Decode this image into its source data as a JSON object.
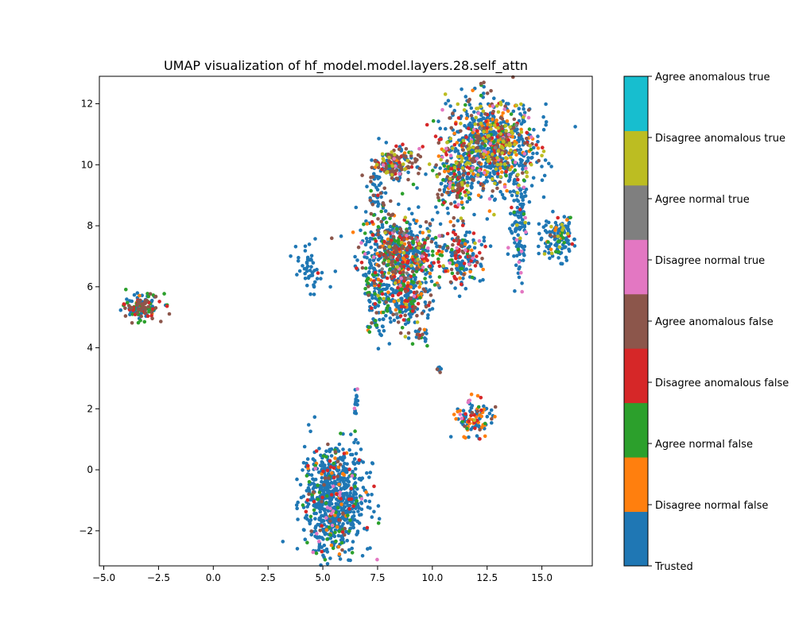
{
  "chart_data": {
    "type": "scatter",
    "title": "UMAP visualization of hf_model.model.layers.28.self_attn",
    "xlabel": "",
    "ylabel": "",
    "xlim": [
      -5.2,
      17.3
    ],
    "ylim": [
      -3.15,
      12.9
    ],
    "xticks": [
      -5.0,
      -2.5,
      0.0,
      2.5,
      5.0,
      7.5,
      10.0,
      12.5,
      15.0
    ],
    "xtick_labels": [
      "−5.0",
      "−2.5",
      "0.0",
      "2.5",
      "5.0",
      "7.5",
      "10.0",
      "12.5",
      "15.0"
    ],
    "yticks": [
      -2,
      0,
      2,
      4,
      6,
      8,
      10,
      12
    ],
    "ytick_labels": [
      "−2",
      "0",
      "2",
      "4",
      "6",
      "8",
      "10",
      "12"
    ],
    "grid": false,
    "legend": "colorbar-right",
    "colorbar": {
      "categories": [
        {
          "label": "Trusted",
          "color": "#1f77b4"
        },
        {
          "label": "Disagree normal false",
          "color": "#ff7f0e"
        },
        {
          "label": "Agree normal false",
          "color": "#2ca02c"
        },
        {
          "label": "Disagree anomalous false",
          "color": "#d62728"
        },
        {
          "label": "Agree anomalous false",
          "color": "#8c564b"
        },
        {
          "label": "Disagree normal true",
          "color": "#e377c2"
        },
        {
          "label": "Agree normal true",
          "color": "#7f7f7f"
        },
        {
          "label": "Disagree anomalous true",
          "color": "#bcbd22"
        },
        {
          "label": "Agree anomalous true",
          "color": "#17becf"
        }
      ]
    },
    "clusters": [
      {
        "name": "far-left",
        "cx": -3.3,
        "cy": 5.35,
        "sx": 0.45,
        "sy": 0.22,
        "n": 140,
        "mix": [
          0.35,
          0.02,
          0.18,
          0.15,
          0.3,
          0.0,
          0.0,
          0.0,
          0.0
        ]
      },
      {
        "name": "left-mid",
        "cx": 4.4,
        "cy": 6.6,
        "sx": 0.25,
        "sy": 0.35,
        "n": 45,
        "mix": [
          1,
          0,
          0,
          0,
          0,
          0,
          0,
          0,
          0
        ]
      },
      {
        "name": "center-main",
        "cx": 8.4,
        "cy": 7.0,
        "sx": 0.9,
        "sy": 0.65,
        "n": 700,
        "mix": [
          0.55,
          0.08,
          0.12,
          0.1,
          0.1,
          0.02,
          0.01,
          0.02,
          0.0
        ]
      },
      {
        "name": "center-lower",
        "cx": 8.8,
        "cy": 5.6,
        "sx": 0.6,
        "sy": 0.5,
        "n": 200,
        "mix": [
          0.55,
          0.08,
          0.12,
          0.12,
          0.1,
          0.01,
          0.0,
          0.02,
          0.0
        ]
      },
      {
        "name": "center-left-tail",
        "cx": 7.4,
        "cy": 5.3,
        "sx": 0.25,
        "sy": 0.5,
        "n": 60,
        "mix": [
          0.7,
          0.05,
          0.2,
          0.0,
          0.05,
          0,
          0,
          0,
          0
        ]
      },
      {
        "name": "upper-mid",
        "cx": 8.3,
        "cy": 10.0,
        "sx": 0.5,
        "sy": 0.3,
        "n": 160,
        "mix": [
          0.35,
          0.05,
          0.05,
          0.08,
          0.35,
          0.02,
          0.0,
          0.1,
          0.0
        ]
      },
      {
        "name": "upper-mid-stem",
        "cx": 7.6,
        "cy": 9.0,
        "sx": 0.25,
        "sy": 0.6,
        "n": 60,
        "mix": [
          0.5,
          0.0,
          0.1,
          0.1,
          0.3,
          0,
          0,
          0,
          0
        ]
      },
      {
        "name": "upper-right",
        "cx": 12.7,
        "cy": 10.6,
        "sx": 1.0,
        "sy": 0.8,
        "n": 900,
        "mix": [
          0.55,
          0.07,
          0.06,
          0.07,
          0.1,
          0.02,
          0.01,
          0.12,
          0.0
        ]
      },
      {
        "name": "upper-right-left",
        "cx": 11.0,
        "cy": 9.5,
        "sx": 0.5,
        "sy": 0.5,
        "n": 150,
        "mix": [
          0.45,
          0.08,
          0.08,
          0.12,
          0.15,
          0.02,
          0.0,
          0.1,
          0.0
        ]
      },
      {
        "name": "right-mid",
        "cx": 11.3,
        "cy": 7.0,
        "sx": 0.45,
        "sy": 0.45,
        "n": 180,
        "mix": [
          0.55,
          0.05,
          0.1,
          0.12,
          0.15,
          0.02,
          0.0,
          0.01,
          0.0
        ]
      },
      {
        "name": "right-column",
        "cx": 14.0,
        "cy": 8.0,
        "sx": 0.2,
        "sy": 1.0,
        "n": 120,
        "mix": [
          0.85,
          0.0,
          0.02,
          0.0,
          0.0,
          0.08,
          0.0,
          0.05,
          0.0
        ]
      },
      {
        "name": "far-right",
        "cx": 15.7,
        "cy": 7.6,
        "sx": 0.4,
        "sy": 0.35,
        "n": 130,
        "mix": [
          0.75,
          0.06,
          0.08,
          0.02,
          0.04,
          0.0,
          0.0,
          0.05,
          0.0
        ]
      },
      {
        "name": "bottom-right-small",
        "cx": 11.9,
        "cy": 1.7,
        "sx": 0.45,
        "sy": 0.3,
        "n": 110,
        "mix": [
          0.45,
          0.25,
          0.05,
          0.1,
          0.1,
          0.03,
          0.0,
          0.02,
          0.0
        ]
      },
      {
        "name": "bottom-left-large",
        "cx": 5.5,
        "cy": -1.0,
        "sx": 0.7,
        "sy": 0.9,
        "n": 800,
        "mix": [
          0.82,
          0.03,
          0.07,
          0.04,
          0.02,
          0.02,
          0.0,
          0.0,
          0.0
        ]
      },
      {
        "name": "small-stem",
        "cx": 6.5,
        "cy": 2.2,
        "sx": 0.05,
        "sy": 0.25,
        "n": 15,
        "mix": [
          0.85,
          0,
          0,
          0,
          0,
          0.15,
          0,
          0,
          0
        ]
      },
      {
        "name": "diag-bridge",
        "cx": 9.5,
        "cy": 4.3,
        "sx": 0.15,
        "sy": 0.15,
        "n": 20,
        "mix": [
          0.6,
          0.1,
          0.2,
          0,
          0.1,
          0,
          0,
          0,
          0
        ]
      },
      {
        "name": "isolated",
        "cx": 10.3,
        "cy": 3.3,
        "sx": 0.05,
        "sy": 0.05,
        "n": 6,
        "mix": [
          0.5,
          0,
          0,
          0,
          0.5,
          0,
          0,
          0,
          0
        ]
      }
    ]
  }
}
